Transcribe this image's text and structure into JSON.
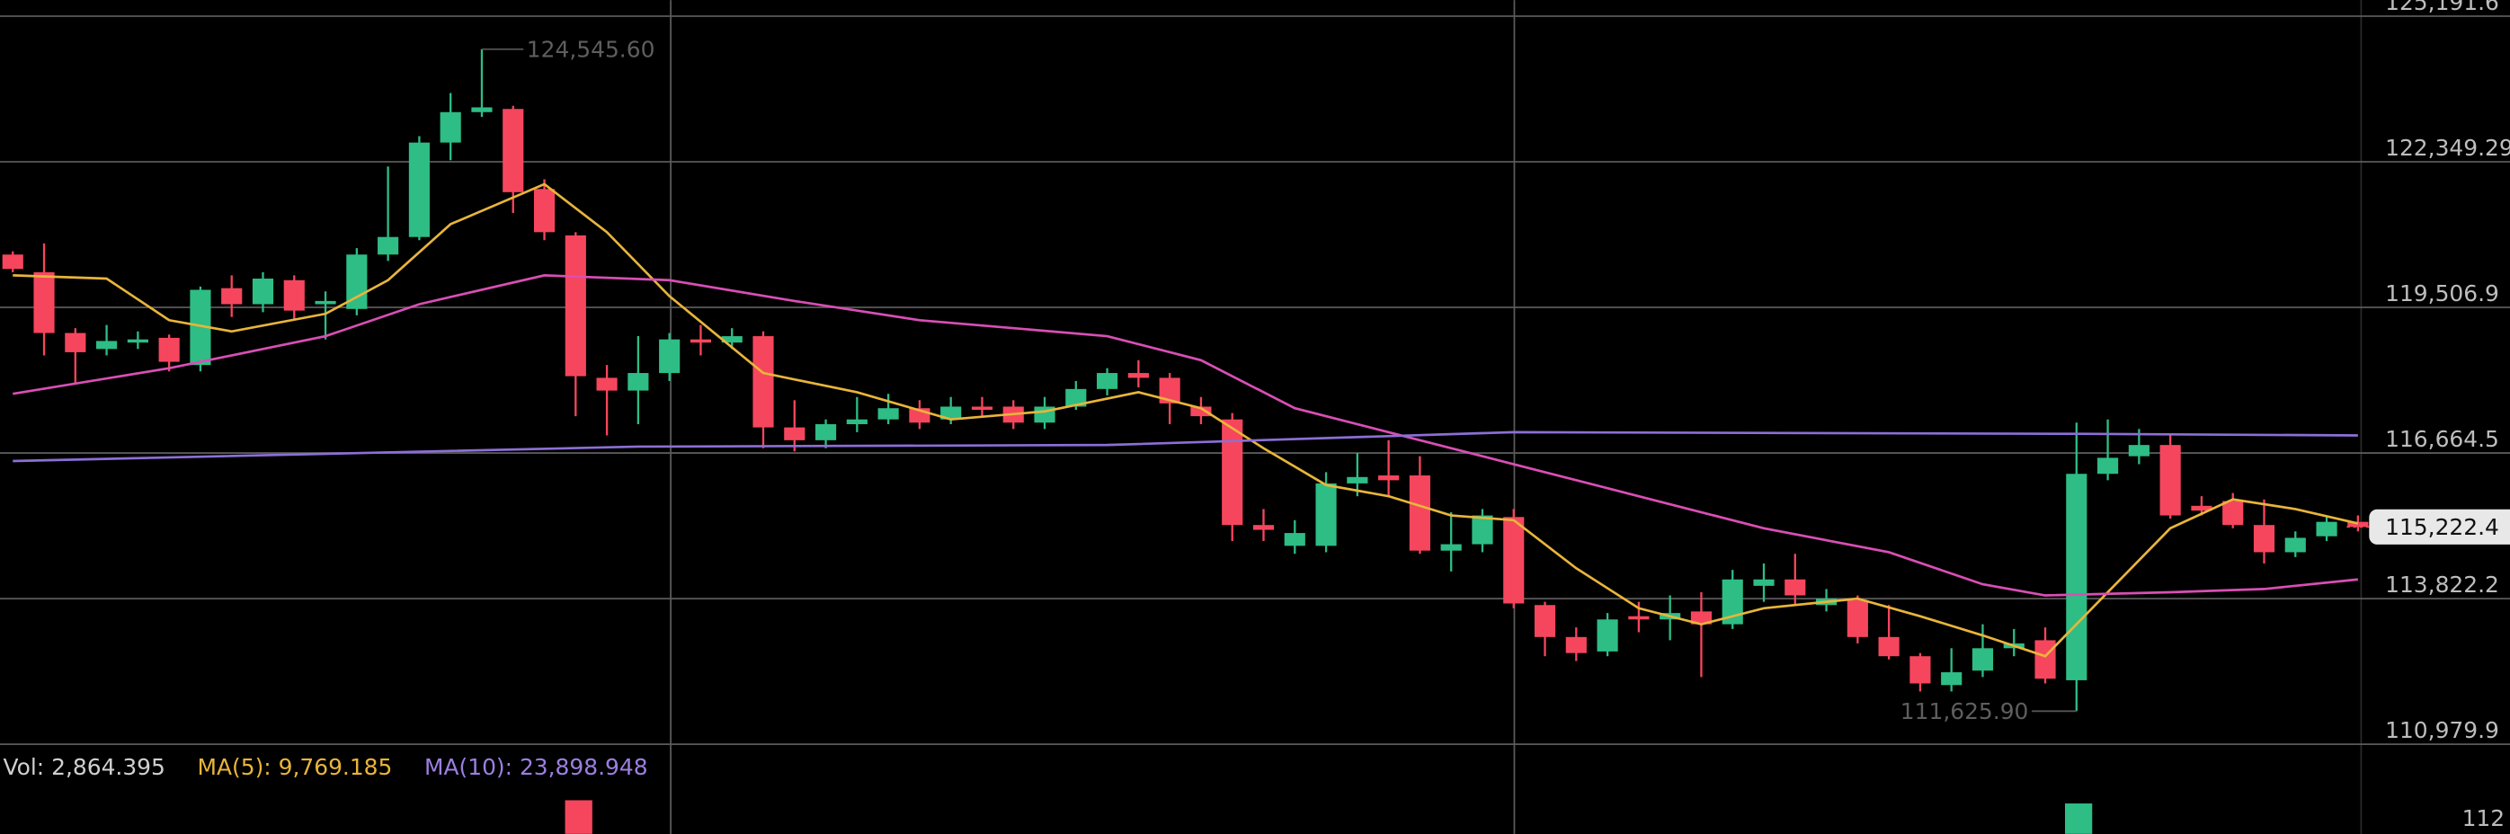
{
  "chart_data": {
    "type": "candlestick",
    "up_color": "#2ebd85",
    "down_color": "#f6465d",
    "ylim": [
      110979.9,
      125191.6
    ],
    "yticks": [
      {
        "value": 125191.6,
        "label": "125,191.6"
      },
      {
        "value": 122349.29,
        "label": "122,349.29"
      },
      {
        "value": 119506.9,
        "label": "119,506.9"
      },
      {
        "value": 116664.5,
        "label": "116,664.5"
      },
      {
        "value": 113822.2,
        "label": "113,822.2"
      },
      {
        "value": 110979.9,
        "label": "110,979.9"
      }
    ],
    "grid": true,
    "candles": {
      "open": [
        120538,
        120194,
        119007,
        118695,
        118820,
        118913,
        118382,
        119882,
        119569,
        120038,
        119569,
        119476,
        120538,
        120881,
        122724,
        123318,
        123380,
        121818,
        120912,
        118132,
        117883,
        118226,
        118882,
        118820,
        118945,
        117164,
        116914,
        117227,
        117320,
        117539,
        117320,
        117570,
        117570,
        117258,
        117570,
        117914,
        118226,
        118132,
        117570,
        117320,
        115259,
        114853,
        114853,
        116071,
        116227,
        116227,
        114759,
        114884,
        115415,
        113697,
        113073,
        112791,
        113479,
        113416,
        113572,
        113322,
        114072,
        114197,
        113697,
        113791,
        113073,
        112698,
        112135,
        112417,
        112854,
        113010,
        112229,
        116258,
        116602,
        116821,
        115634,
        115727,
        115259,
        114728,
        115040,
        115321
      ],
      "high": [
        120600,
        120756,
        119101,
        119163,
        119038,
        118976,
        119913,
        120132,
        120194,
        120132,
        119819,
        120663,
        122256,
        122849,
        123692,
        124545.6,
        123442,
        122006,
        120975,
        118382,
        118945,
        119007,
        119163,
        119101,
        119038,
        117695,
        117320,
        117758,
        117820,
        117695,
        117758,
        117758,
        117695,
        117758,
        118070,
        118320,
        118476,
        118226,
        117758,
        117445,
        115571,
        115353,
        116290,
        116664,
        116914,
        116602,
        115509,
        115571,
        115571,
        113760,
        113260,
        113541,
        113760,
        113885,
        113947,
        114384,
        114509,
        114697,
        114010,
        113885,
        113697,
        112760,
        112854,
        113322,
        113229,
        113260,
        117258,
        117320,
        117133,
        117008,
        115821,
        115884,
        115759,
        115134,
        115446,
        115446
      ],
      "low": [
        120194,
        118570,
        118008,
        118570,
        118695,
        118257,
        118257,
        119320,
        119413,
        119288,
        118882,
        119351,
        120413,
        120819,
        122380,
        123224,
        121350,
        120819,
        117383,
        117008,
        117227,
        118070,
        118570,
        118695,
        116758,
        116696,
        116758,
        117071,
        117227,
        117133,
        117227,
        117383,
        117133,
        117133,
        117508,
        117789,
        117945,
        117227,
        117227,
        114947,
        114947,
        114697,
        114728,
        115821,
        115821,
        114697,
        114353,
        114728,
        113635,
        112698,
        112604,
        112698,
        113166,
        113010,
        112292,
        113229,
        113760,
        113697,
        113572,
        112948,
        112635,
        112010,
        112010,
        112292,
        112698,
        112167,
        111625.9,
        116133,
        116446,
        115384,
        115446,
        115196,
        114509,
        114634,
        114947,
        115134
      ],
      "close": [
        120257,
        119007,
        118632,
        118851,
        118882,
        118445,
        119850,
        119569,
        120069,
        119444,
        119632,
        120538,
        120881,
        122724,
        123318,
        123411,
        121756,
        120975,
        118164,
        117883,
        118226,
        118882,
        118820,
        118945,
        117164,
        116914,
        117227,
        117320,
        117539,
        117258,
        117570,
        117508,
        117258,
        117570,
        117914,
        118226,
        118132,
        117633,
        117383,
        115259,
        115165,
        115103,
        116071,
        116196,
        116133,
        114759,
        114884,
        115446,
        113728,
        113073,
        112760,
        113416,
        113416,
        113541,
        113322,
        114197,
        114197,
        113885,
        113822,
        113073,
        112698,
        112167,
        112385,
        112854,
        112948,
        112260,
        116258,
        116571,
        116821,
        115446,
        115540,
        115259,
        114728,
        115009,
        115321,
        115222.4
      ]
    },
    "series": [
      {
        "color": "#e8b53a",
        "x": [
          0,
          3,
          5,
          7,
          10,
          12,
          14,
          17,
          19,
          21,
          24,
          27,
          30,
          33,
          36,
          38,
          40,
          42,
          44,
          46,
          48,
          50,
          52,
          54,
          56,
          59,
          61,
          63,
          65,
          67,
          69,
          71,
          73,
          75
        ],
        "values": [
          120132,
          120069,
          119257,
          119038,
          119382,
          120038,
          121131,
          121912,
          120975,
          119726,
          118226,
          117851,
          117320,
          117477,
          117851,
          117539,
          116758,
          116040,
          115821,
          115446,
          115353,
          114416,
          113635,
          113322,
          113635,
          113822,
          113479,
          113104,
          112698,
          113947,
          115196,
          115759,
          115571,
          115290
        ]
      },
      {
        "color": "#d94fb5",
        "x": [
          0,
          5,
          10,
          13,
          17,
          21,
          25,
          29,
          35,
          38,
          41,
          44,
          48,
          52,
          56,
          60,
          63,
          65,
          69,
          72,
          75
        ],
        "values": [
          117820,
          118320,
          118945,
          119569,
          120132,
          120038,
          119632,
          119257,
          118945,
          118476,
          117539,
          117071,
          116446,
          115821,
          115196,
          114728,
          114103,
          113885,
          113947,
          114010,
          114197
        ]
      },
      {
        "color": "#8c6fd6",
        "x": [
          0,
          20,
          35,
          48,
          66,
          75
        ],
        "values": [
          116508,
          116789,
          116821,
          117071,
          117039,
          117008
        ]
      }
    ],
    "annotations": [
      {
        "text": "124,545.60",
        "value": 124545.6,
        "candle": 15
      },
      {
        "text": "111,625.90",
        "value": 111625.9,
        "candle": 66
      }
    ],
    "last_price": {
      "value": 115222.4,
      "label": "115,222.4"
    },
    "volume": {
      "legend": [
        {
          "text": "Vol: 2,864.395",
          "color": "#d0d0d0"
        },
        {
          "text": "MA(5): 9,769.185",
          "color": "#e8b53a"
        },
        {
          "text": "MA(10): 23,898.948",
          "color": "#9b7fe0"
        }
      ],
      "axis_label": "112"
    }
  }
}
